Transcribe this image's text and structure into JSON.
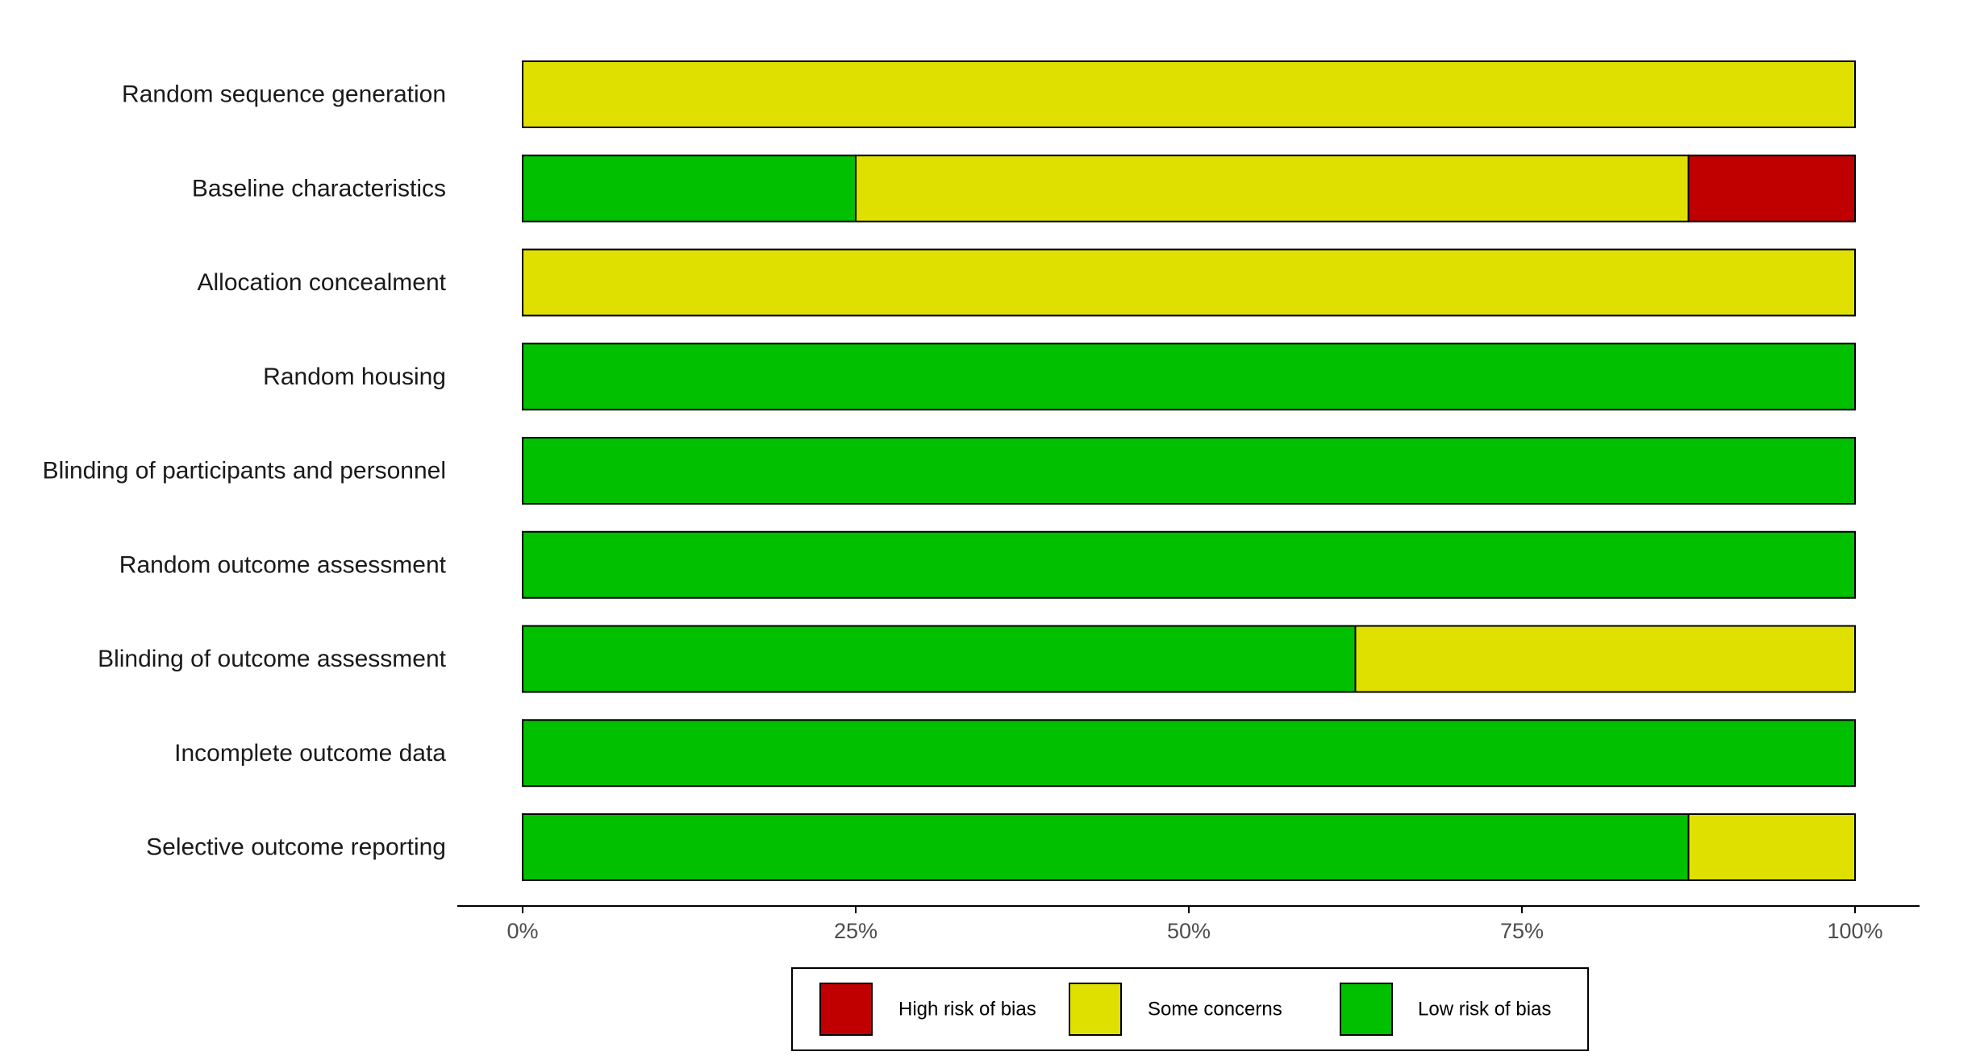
{
  "colors": {
    "high": "#c00000",
    "some": "#e0e000",
    "low": "#00c000",
    "outline": "#000000"
  },
  "chart_data": {
    "type": "bar",
    "orientation": "horizontal",
    "stacked": true,
    "categories": [
      "Random sequence generation",
      "Baseline characteristics",
      "Allocation concealment",
      "Random housing",
      "Blinding of participants and personnel",
      "Random outcome assessment",
      "Blinding of outcome assessment",
      "Incomplete outcome data",
      "Selective outcome reporting"
    ],
    "series": [
      {
        "key": "low",
        "name": "Low risk of bias",
        "color": "#00c000",
        "values": [
          0,
          25,
          0,
          100,
          100,
          100,
          62.5,
          100,
          87.5
        ]
      },
      {
        "key": "some",
        "name": "Some concerns",
        "color": "#e0e000",
        "values": [
          100,
          62.5,
          100,
          0,
          0,
          0,
          37.5,
          0,
          12.5
        ]
      },
      {
        "key": "high",
        "name": "High risk of bias",
        "color": "#c00000",
        "values": [
          0,
          12.5,
          0,
          0,
          0,
          0,
          0,
          0,
          0
        ]
      }
    ],
    "xlim": [
      0,
      100
    ],
    "xticks": [
      0,
      25,
      50,
      75,
      100
    ],
    "xtick_labels": [
      "0%",
      "25%",
      "50%",
      "75%",
      "100%"
    ],
    "grid": false,
    "legend": {
      "position": "bottom",
      "order": [
        "high",
        "some",
        "low"
      ]
    },
    "title": "",
    "xlabel": "",
    "ylabel": ""
  }
}
